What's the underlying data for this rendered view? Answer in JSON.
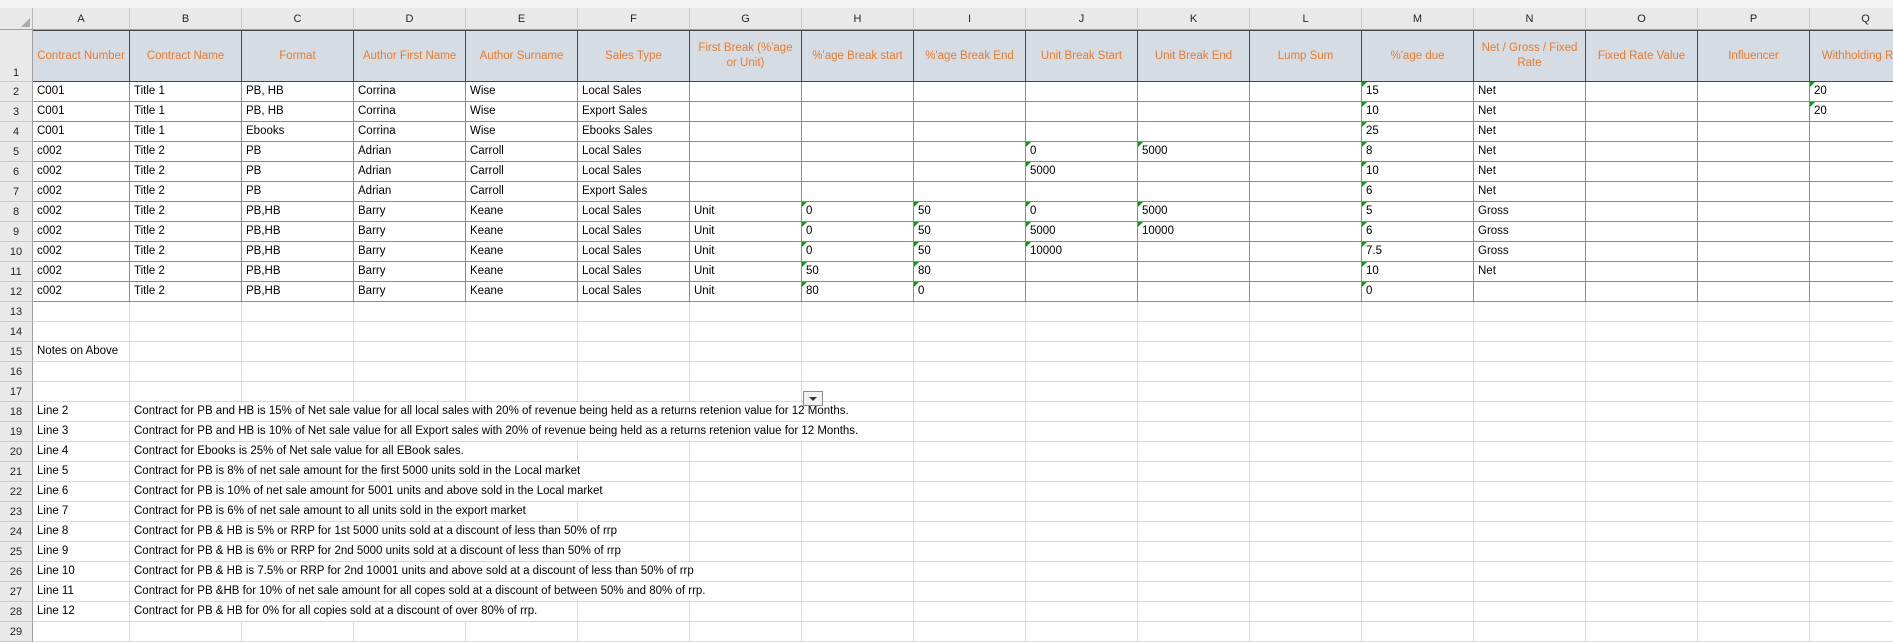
{
  "sheet": {
    "colors": {
      "header_bg": "#d6dce4",
      "header_text": "#e87c2e",
      "table_border": "#8a8a8a",
      "gridline": "#d9d9d9",
      "error_flag_green": "#0f9b0f",
      "strip_bg": "#e9e9e9"
    },
    "columns": [
      {
        "letter": "A",
        "label": "Contract Number"
      },
      {
        "letter": "B",
        "label": "Contract Name"
      },
      {
        "letter": "C",
        "label": "Format"
      },
      {
        "letter": "D",
        "label": "Author First Name"
      },
      {
        "letter": "E",
        "label": "Author Surname"
      },
      {
        "letter": "F",
        "label": "Sales Type"
      },
      {
        "letter": "G",
        "label": "First Break (%'age or Unit)"
      },
      {
        "letter": "H",
        "label": "%'age Break start"
      },
      {
        "letter": "I",
        "label": "%'age Break End"
      },
      {
        "letter": "J",
        "label": "Unit Break Start"
      },
      {
        "letter": "K",
        "label": "Unit Break End"
      },
      {
        "letter": "L",
        "label": "Lump Sum"
      },
      {
        "letter": "M",
        "label": "%'age due"
      },
      {
        "letter": "N",
        "label": "Net / Gross / Fixed Rate"
      },
      {
        "letter": "O",
        "label": "Fixed Rate Value"
      },
      {
        "letter": "P",
        "label": "Influencer"
      },
      {
        "letter": "Q",
        "label": "Withholding Rate"
      }
    ],
    "table_rows": [
      {
        "n": 2,
        "cells": {
          "A": "C001",
          "B": "Title 1",
          "C": "PB, HB",
          "D": "Corrina",
          "E": "Wise",
          "F": "Local Sales",
          "M": "15",
          "N": "Net",
          "Q": "20"
        },
        "flags": [
          "M",
          "Q"
        ]
      },
      {
        "n": 3,
        "cells": {
          "A": "C001",
          "B": "Title 1",
          "C": "PB, HB",
          "D": "Corrina",
          "E": "Wise",
          "F": "Export Sales",
          "M": "10",
          "N": "Net",
          "Q": "20"
        },
        "flags": [
          "M",
          "Q"
        ]
      },
      {
        "n": 4,
        "cells": {
          "A": "C001",
          "B": "Title 1",
          "C": "Ebooks",
          "D": "Corrina",
          "E": "Wise",
          "F": "Ebooks Sales",
          "M": "25",
          "N": "Net"
        },
        "flags": [
          "M"
        ]
      },
      {
        "n": 5,
        "cells": {
          "A": "c002",
          "B": "Title 2",
          "C": "PB",
          "D": "Adrian",
          "E": "Carroll",
          "F": "Local Sales",
          "J": "0",
          "K": "5000",
          "M": "8",
          "N": "Net"
        },
        "flags": [
          "J",
          "K",
          "M"
        ]
      },
      {
        "n": 6,
        "cells": {
          "A": "c002",
          "B": "Title 2",
          "C": "PB",
          "D": "Adrian",
          "E": "Carroll",
          "F": "Local Sales",
          "J": "5000",
          "M": "10",
          "N": "Net"
        },
        "flags": [
          "J",
          "M"
        ]
      },
      {
        "n": 7,
        "cells": {
          "A": "c002",
          "B": "Title 2",
          "C": "PB",
          "D": "Adrian",
          "E": "Carroll",
          "F": "Export Sales",
          "M": "6",
          "N": "Net"
        },
        "flags": [
          "M"
        ]
      },
      {
        "n": 8,
        "cells": {
          "A": "c002",
          "B": "Title 2",
          "C": "PB,HB",
          "D": "Barry",
          "E": "Keane",
          "F": "Local Sales",
          "G": "Unit",
          "H": "0",
          "I": "50",
          "J": "0",
          "K": "5000",
          "M": "5",
          "N": "Gross"
        },
        "flags": [
          "H",
          "I",
          "J",
          "K",
          "M"
        ]
      },
      {
        "n": 9,
        "cells": {
          "A": "c002",
          "B": "Title 2",
          "C": "PB,HB",
          "D": "Barry",
          "E": "Keane",
          "F": "Local Sales",
          "G": "Unit",
          "H": "0",
          "I": "50",
          "J": "5000",
          "K": "10000",
          "M": "6",
          "N": "Gross"
        },
        "flags": [
          "H",
          "I",
          "J",
          "K",
          "M"
        ]
      },
      {
        "n": 10,
        "cells": {
          "A": "c002",
          "B": "Title 2",
          "C": "PB,HB",
          "D": "Barry",
          "E": "Keane",
          "F": "Local Sales",
          "G": "Unit",
          "H": "0",
          "I": "50",
          "J": "10000",
          "M": "7.5",
          "N": "Gross"
        },
        "flags": [
          "H",
          "I",
          "J",
          "M"
        ]
      },
      {
        "n": 11,
        "cells": {
          "A": "c002",
          "B": "Title 2",
          "C": "PB,HB",
          "D": "Barry",
          "E": "Keane",
          "F": "Local Sales",
          "G": "Unit",
          "H": "50",
          "I": "80",
          "M": "10",
          "N": "Net"
        },
        "flags": [
          "H",
          "I",
          "M"
        ]
      },
      {
        "n": 12,
        "cells": {
          "A": "c002",
          "B": "Title 2",
          "C": "PB,HB",
          "D": "Barry",
          "E": "Keane",
          "F": "Local Sales",
          "G": "Unit",
          "H": "80",
          "I": "0",
          "M": "0"
        },
        "flags": [
          "H",
          "I",
          "M"
        ]
      }
    ],
    "label_rows": [
      {
        "n": 15,
        "a": "Notes on Above"
      }
    ],
    "notes_rows": [
      {
        "n": 18,
        "label": "Line 2",
        "text": "Contract for PB and HB is 15% of Net sale value for all local sales with 20% of revenue being held as a returns retenion value for 12 Months."
      },
      {
        "n": 19,
        "label": "Line 3",
        "text": "Contract for PB and HB is 10% of Net sale value for all Export sales with 20% of revenue being held as a returns retenion value for 12 Months."
      },
      {
        "n": 20,
        "label": "Line 4",
        "text": "Contract for Ebooks is 25% of Net sale value for all EBook sales."
      },
      {
        "n": 21,
        "label": "Line 5",
        "text": "Contract for PB is 8% of net sale amount for the first 5000 units sold in the Local market"
      },
      {
        "n": 22,
        "label": "Line 6",
        "text": "Contract for PB is 10% of net sale amount for 5001 units and above sold in the Local market"
      },
      {
        "n": 23,
        "label": "Line 7",
        "text": "Contract for PB is 6% of net sale amount to all units sold in the export market"
      },
      {
        "n": 24,
        "label": "Line 8",
        "text": "Contract for PB & HB is 5% or RRP for 1st 5000 units sold at a discount of less than 50% of rrp"
      },
      {
        "n": 25,
        "label": "Line 9",
        "text": "Contract for PB & HB is 6% or RRP for 2nd 5000 units sold at a discount of less than 50% of rrp"
      },
      {
        "n": 26,
        "label": "Line 10",
        "text": "Contract for PB & HB is 7.5% or RRP for 2nd 10001 units and above sold at a discount of less than 50% of rrp"
      },
      {
        "n": 27,
        "label": "Line 11",
        "text": "Contract for PB &HB for 10% of net sale amount for all copes sold at a discount of between 50% and 80% of rrp."
      },
      {
        "n": 28,
        "label": "Line 12",
        "text": "Contract for PB & HB for 0% for all copies sold at a discount of over 80% of rrp."
      }
    ],
    "first_data_row": 2,
    "last_visible_row": 29,
    "dropdown": {
      "near_cell": "H17",
      "icon": "chevron-down"
    }
  }
}
